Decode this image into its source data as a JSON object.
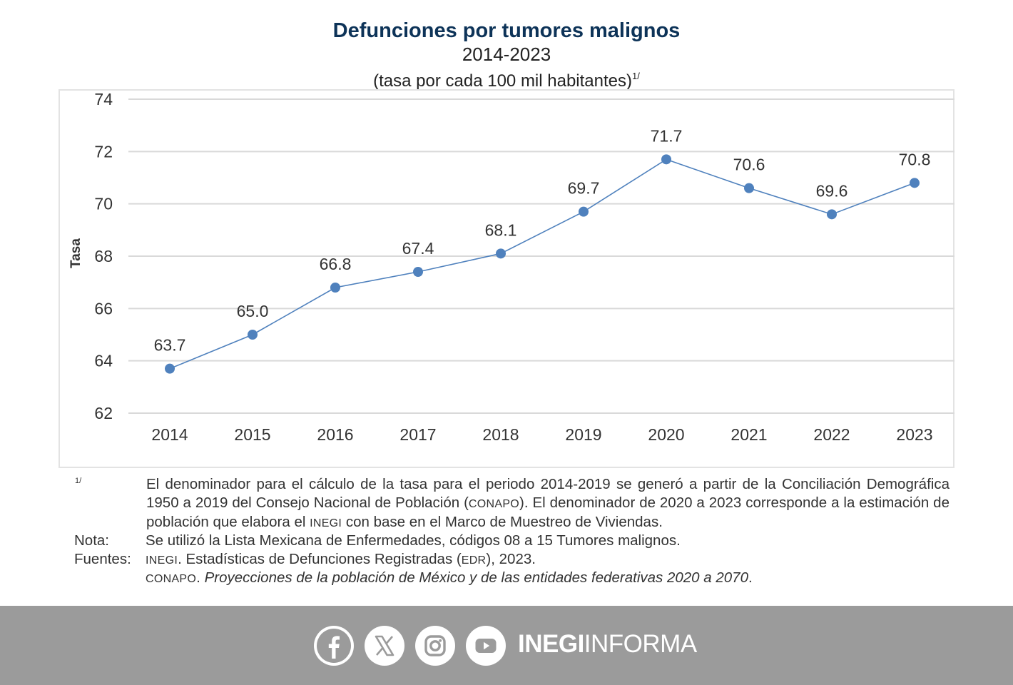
{
  "header": {
    "title": "Defunciones por tumores malignos",
    "period": "2014-2023",
    "unit": "(tasa por cada 100 mil habitantes)",
    "unit_footnote": "1/"
  },
  "chart_data": {
    "type": "line",
    "title": "Defunciones por tumores malignos",
    "subtitle": "2014-2023 (tasa por cada 100 mil habitantes)",
    "xlabel": "",
    "ylabel": "Tasa",
    "x": [
      "2014",
      "2015",
      "2016",
      "2017",
      "2018",
      "2019",
      "2020",
      "2021",
      "2022",
      "2023"
    ],
    "series": [
      {
        "name": "Tasa",
        "values": [
          63.7,
          65.0,
          66.8,
          67.4,
          68.1,
          69.7,
          71.7,
          70.6,
          69.6,
          70.8
        ]
      }
    ],
    "data_labels": [
      "63.7",
      "65.0",
      "66.8",
      "67.4",
      "68.1",
      "69.7",
      "71.7",
      "70.6",
      "69.6",
      "70.8"
    ],
    "ylim": [
      62,
      74
    ],
    "yticks": [
      62,
      64,
      66,
      68,
      70,
      72,
      74
    ],
    "grid": true,
    "legend": "none",
    "colors": {
      "line": "#4f81bd",
      "marker": "#4f81bd",
      "grid": "#d9d9d9",
      "text": "#333333"
    }
  },
  "notes": {
    "footnote_mark": "1/",
    "footnote": {
      "part1": "El denominador para el cálculo de la tasa para el periodo 2014-2019 se generó a partir de la Conciliación Demográfica 1950 a 2019 del Consejo Nacional de Población (",
      "org1": "CONAPO",
      "part2": "). El denominador de 2020 a 2023 corresponde a la estimación de población que elabora el ",
      "org2": "INEGI",
      "part3": " con base en el Marco de Muestreo de Viviendas."
    },
    "nota_label": "Nota:",
    "nota_text": "Se utilizó la Lista Mexicana de Enfermedades, códigos 08 a 15 Tumores malignos.",
    "fuentes_label": "Fuentes:",
    "fuente1": {
      "org": "INEGI",
      "text_a": ". Estadísticas de Defunciones Registradas (",
      "abbr": "EDR",
      "text_b": "), 2023."
    },
    "fuente2": {
      "org": "CONAPO",
      "text_a": ". ",
      "title": "Proyecciones de la población de México y de las entidades federativas 2020 a 2070",
      "text_b": "."
    }
  },
  "footer": {
    "icons": [
      "facebook-icon",
      "x-icon",
      "instagram-icon",
      "youtube-icon"
    ],
    "brand_bold": "INEGI",
    "brand_light": "INFORMA",
    "bg_color": "#9b9b9b"
  }
}
